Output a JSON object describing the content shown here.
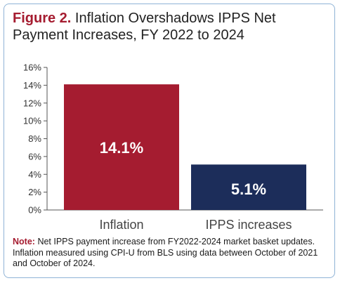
{
  "title": {
    "figure_label": "Figure 2.",
    "text": "Inflation Overshadows IPPS Net Payment Increases, FY 2022 to 2024"
  },
  "note": {
    "label": "Note:",
    "text": "Net IPPS payment increase from FY2022-2024 market basket updates. Inflation measured using CPI-U from BLS using data between October of 2021 and October of 2024."
  },
  "colors": {
    "accent": "#a51c30",
    "bar_inflation": "#a51c30",
    "bar_ipps": "#1c2d5a",
    "border": "#8fb3d6"
  },
  "chart_data": {
    "type": "bar",
    "categories": [
      "Inflation",
      "IPPS increases"
    ],
    "values": [
      14.1,
      5.1
    ],
    "data_labels": [
      "14.1%",
      "5.1%"
    ],
    "ylim": [
      0,
      16
    ],
    "yticks": [
      0,
      2,
      4,
      6,
      8,
      10,
      12,
      14,
      16
    ],
    "ytick_labels": [
      "0%",
      "2%",
      "4%",
      "6%",
      "8%",
      "10%",
      "12%",
      "14%",
      "16%"
    ],
    "grid": false,
    "legend": "none"
  }
}
